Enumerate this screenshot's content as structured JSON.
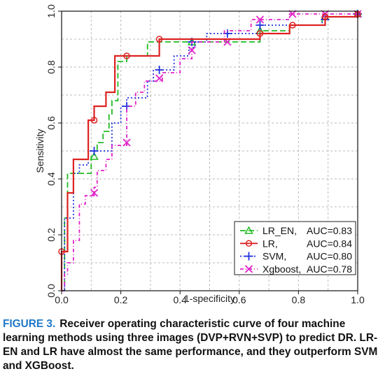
{
  "chart_data": {
    "type": "line",
    "title": "",
    "xlabel": "1-specificity",
    "ylabel": "Sensitivity",
    "xlim": [
      0,
      1
    ],
    "ylim": [
      0,
      1
    ],
    "xticks": [
      "0.0",
      "0.2",
      "0.4",
      "0.6",
      "0.8",
      "1.0"
    ],
    "yticks": [
      "0.0",
      "0.2",
      "0.4",
      "0.6",
      "0.8",
      "1.0"
    ],
    "grid": true,
    "legend_position": "bottom-right",
    "series": [
      {
        "name": "LR_EN,",
        "auc": "AUC=0.83",
        "color": "#22bb22",
        "marker": "triangle",
        "dash": "8,4",
        "points": [
          [
            0,
            0
          ],
          [
            0.01,
            0
          ],
          [
            0.01,
            0.26
          ],
          [
            0.02,
            0.26
          ],
          [
            0.02,
            0.42
          ],
          [
            0.1,
            0.42
          ],
          [
            0.1,
            0.48
          ],
          [
            0.11,
            0.48
          ],
          [
            0.11,
            0.5
          ],
          [
            0.12,
            0.5
          ],
          [
            0.12,
            0.53
          ],
          [
            0.14,
            0.53
          ],
          [
            0.14,
            0.57
          ],
          [
            0.16,
            0.57
          ],
          [
            0.16,
            0.63
          ],
          [
            0.17,
            0.63
          ],
          [
            0.17,
            0.68
          ],
          [
            0.19,
            0.68
          ],
          [
            0.19,
            0.82
          ],
          [
            0.22,
            0.82
          ],
          [
            0.22,
            0.84
          ],
          [
            0.29,
            0.84
          ],
          [
            0.29,
            0.89
          ],
          [
            0.67,
            0.89
          ],
          [
            0.67,
            0.93
          ],
          [
            0.77,
            0.93
          ],
          [
            0.77,
            0.95
          ],
          [
            0.88,
            0.95
          ],
          [
            0.88,
            0.98
          ],
          [
            1,
            0.98
          ],
          [
            1,
            1
          ]
        ],
        "markers": [
          [
            0.11,
            0.48
          ],
          [
            0.44,
            0.89
          ],
          [
            0.67,
            0.93
          ],
          [
            0.89,
            0.98
          ],
          [
            1,
            0.99
          ]
        ]
      },
      {
        "name": "LR,",
        "auc": "AUC=0.84",
        "color": "#dd2222",
        "marker": "circle",
        "dash": "",
        "points": [
          [
            0,
            0
          ],
          [
            0,
            0.14
          ],
          [
            0.02,
            0.14
          ],
          [
            0.02,
            0.35
          ],
          [
            0.04,
            0.35
          ],
          [
            0.04,
            0.47
          ],
          [
            0.09,
            0.47
          ],
          [
            0.09,
            0.61
          ],
          [
            0.11,
            0.61
          ],
          [
            0.11,
            0.66
          ],
          [
            0.15,
            0.66
          ],
          [
            0.15,
            0.71
          ],
          [
            0.18,
            0.71
          ],
          [
            0.18,
            0.84
          ],
          [
            0.33,
            0.84
          ],
          [
            0.33,
            0.9
          ],
          [
            0.67,
            0.9
          ],
          [
            0.67,
            0.92
          ],
          [
            0.77,
            0.92
          ],
          [
            0.77,
            0.95
          ],
          [
            0.89,
            0.95
          ],
          [
            0.89,
            0.98
          ],
          [
            1,
            0.98
          ],
          [
            1,
            1
          ]
        ],
        "markers": [
          [
            0,
            0.14
          ],
          [
            0.11,
            0.61
          ],
          [
            0.22,
            0.84
          ],
          [
            0.33,
            0.9
          ],
          [
            0.67,
            0.92
          ],
          [
            0.78,
            0.95
          ],
          [
            0.89,
            0.98
          ],
          [
            1,
            0.99
          ]
        ]
      },
      {
        "name": "SVM,",
        "auc": "AUC=0.80",
        "color": "#2233dd",
        "marker": "plus",
        "dash": "2,3",
        "points": [
          [
            0,
            0
          ],
          [
            0.01,
            0
          ],
          [
            0.01,
            0.26
          ],
          [
            0.04,
            0.26
          ],
          [
            0.04,
            0.42
          ],
          [
            0.06,
            0.42
          ],
          [
            0.06,
            0.45
          ],
          [
            0.09,
            0.45
          ],
          [
            0.09,
            0.5
          ],
          [
            0.17,
            0.5
          ],
          [
            0.17,
            0.6
          ],
          [
            0.2,
            0.6
          ],
          [
            0.2,
            0.66
          ],
          [
            0.22,
            0.66
          ],
          [
            0.22,
            0.69
          ],
          [
            0.29,
            0.69
          ],
          [
            0.29,
            0.75
          ],
          [
            0.31,
            0.75
          ],
          [
            0.31,
            0.79
          ],
          [
            0.38,
            0.79
          ],
          [
            0.38,
            0.84
          ],
          [
            0.43,
            0.84
          ],
          [
            0.43,
            0.87
          ],
          [
            0.45,
            0.87
          ],
          [
            0.45,
            0.89
          ],
          [
            0.49,
            0.89
          ],
          [
            0.49,
            0.92
          ],
          [
            0.67,
            0.92
          ],
          [
            0.67,
            0.95
          ],
          [
            0.88,
            0.95
          ],
          [
            0.88,
            0.98
          ],
          [
            1,
            0.98
          ],
          [
            1,
            1
          ]
        ],
        "markers": [
          [
            0.11,
            0.5
          ],
          [
            0.22,
            0.66
          ],
          [
            0.33,
            0.79
          ],
          [
            0.44,
            0.89
          ],
          [
            0.56,
            0.92
          ],
          [
            0.67,
            0.95
          ],
          [
            0.89,
            0.97
          ],
          [
            1,
            0.99
          ]
        ]
      },
      {
        "name": "Xgboost,",
        "auc": "AUC=0.78",
        "color": "#e022c8",
        "marker": "cross",
        "dash": "5,3,1,3",
        "points": [
          [
            0,
            0
          ],
          [
            0.01,
            0
          ],
          [
            0.01,
            0.06
          ],
          [
            0.02,
            0.06
          ],
          [
            0.02,
            0.1
          ],
          [
            0.04,
            0.1
          ],
          [
            0.04,
            0.18
          ],
          [
            0.06,
            0.18
          ],
          [
            0.06,
            0.31
          ],
          [
            0.08,
            0.31
          ],
          [
            0.08,
            0.34
          ],
          [
            0.11,
            0.34
          ],
          [
            0.11,
            0.37
          ],
          [
            0.12,
            0.37
          ],
          [
            0.12,
            0.43
          ],
          [
            0.15,
            0.43
          ],
          [
            0.15,
            0.47
          ],
          [
            0.17,
            0.47
          ],
          [
            0.17,
            0.52
          ],
          [
            0.22,
            0.52
          ],
          [
            0.22,
            0.66
          ],
          [
            0.25,
            0.66
          ],
          [
            0.25,
            0.71
          ],
          [
            0.28,
            0.71
          ],
          [
            0.28,
            0.75
          ],
          [
            0.34,
            0.75
          ],
          [
            0.34,
            0.78
          ],
          [
            0.4,
            0.78
          ],
          [
            0.4,
            0.83
          ],
          [
            0.44,
            0.83
          ],
          [
            0.44,
            0.89
          ],
          [
            0.55,
            0.89
          ],
          [
            0.55,
            0.93
          ],
          [
            0.64,
            0.93
          ],
          [
            0.64,
            0.97
          ],
          [
            0.77,
            0.97
          ],
          [
            0.77,
            0.99
          ],
          [
            1,
            0.99
          ],
          [
            1,
            1
          ]
        ],
        "markers": [
          [
            0.11,
            0.35
          ],
          [
            0.22,
            0.53
          ],
          [
            0.33,
            0.76
          ],
          [
            0.44,
            0.86
          ],
          [
            0.56,
            0.89
          ],
          [
            0.67,
            0.97
          ],
          [
            0.78,
            0.99
          ],
          [
            0.89,
            0.99
          ],
          [
            1,
            0.99
          ]
        ]
      }
    ]
  },
  "caption": {
    "label": "FIGURE 3.",
    "text": "Receiver operating characteristic curve of four machine learning methods using three images (DVP+RVN+SVP) to predict DR. LR-EN and LR have almost the same performance, and they outperform SVM and XGBoost."
  }
}
